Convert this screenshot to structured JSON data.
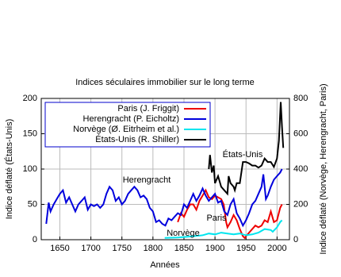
{
  "chart_data": {
    "type": "line",
    "title": "Indices séculaires immobilier sur le long terme",
    "x_label": "Années",
    "y_label": "Indice déflaté (États-Unis)",
    "y2_label": "Indice déflaté (Norvège, Herengracht, Paris)",
    "xlim": [
      1620,
      2020
    ],
    "xticks": [
      1650,
      1700,
      1750,
      1800,
      1850,
      1900,
      1950,
      2000
    ],
    "ylim": [
      0,
      200
    ],
    "yticks": [
      0,
      50,
      100,
      150,
      200
    ],
    "y2lim": [
      0,
      800
    ],
    "y2ticks": [
      0,
      200,
      400,
      600,
      800
    ],
    "grid": true,
    "legend": "upper-left",
    "annotations": [
      "Herengracht",
      "États-Unis",
      "Paris",
      "Norvège"
    ],
    "series": [
      {
        "name": "Paris (J. Friggit)",
        "color": "#ee0000",
        "axis": "y2",
        "x": [
          1840,
          1845,
          1850,
          1855,
          1860,
          1865,
          1870,
          1875,
          1880,
          1885,
          1890,
          1895,
          1900,
          1905,
          1910,
          1914,
          1918,
          1920,
          1925,
          1930,
          1935,
          1940,
          1945,
          1948,
          1950,
          1955,
          1960,
          1965,
          1970,
          1975,
          1980,
          1985,
          1990,
          1995,
          2000,
          2005,
          2008
        ],
        "values": [
          100,
          150,
          130,
          170,
          200,
          200,
          170,
          220,
          250,
          280,
          240,
          230,
          250,
          240,
          230,
          200,
          100,
          70,
          100,
          140,
          110,
          60,
          20,
          10,
          20,
          40,
          60,
          80,
          70,
          80,
          110,
          100,
          160,
          100,
          110,
          180,
          200
        ]
      },
      {
        "name": "Herengracht (P. Eicholtz)",
        "color": "#0000dd",
        "axis": "y2",
        "x": [
          1628,
          1632,
          1635,
          1640,
          1645,
          1650,
          1655,
          1660,
          1665,
          1670,
          1675,
          1680,
          1685,
          1690,
          1695,
          1700,
          1705,
          1710,
          1715,
          1720,
          1725,
          1730,
          1735,
          1740,
          1745,
          1750,
          1755,
          1760,
          1765,
          1770,
          1775,
          1780,
          1785,
          1790,
          1795,
          1800,
          1805,
          1810,
          1815,
          1820,
          1825,
          1830,
          1835,
          1840,
          1845,
          1850,
          1855,
          1860,
          1865,
          1870,
          1875,
          1880,
          1885,
          1890,
          1895,
          1900,
          1905,
          1910,
          1915,
          1920,
          1925,
          1930,
          1935,
          1940,
          1945,
          1950,
          1955,
          1960,
          1965,
          1970,
          1975,
          1978,
          1982,
          1985,
          1990,
          1995,
          2000,
          2005,
          2008
        ],
        "values": [
          90,
          210,
          160,
          200,
          230,
          260,
          280,
          210,
          240,
          200,
          160,
          200,
          220,
          240,
          170,
          200,
          190,
          200,
          180,
          200,
          260,
          300,
          280,
          220,
          240,
          200,
          220,
          260,
          280,
          300,
          280,
          240,
          250,
          230,
          180,
          160,
          100,
          110,
          90,
          80,
          120,
          110,
          130,
          150,
          140,
          200,
          180,
          220,
          260,
          220,
          250,
          290,
          250,
          220,
          240,
          260,
          210,
          220,
          160,
          140,
          200,
          230,
          150,
          120,
          80,
          110,
          150,
          200,
          220,
          260,
          300,
          370,
          230,
          250,
          300,
          340,
          360,
          380,
          400
        ]
      },
      {
        "name": "Norvège (Ø. Eitrheim et al.)",
        "color": "#00e5ee",
        "axis": "y2",
        "x": [
          1819,
          1840,
          1860,
          1880,
          1890,
          1900,
          1910,
          1920,
          1930,
          1940,
          1950,
          1960,
          1970,
          1980,
          1990,
          1993,
          2000,
          2005,
          2008
        ],
        "values": [
          10,
          12,
          18,
          25,
          35,
          30,
          40,
          35,
          30,
          35,
          25,
          30,
          40,
          60,
          55,
          45,
          70,
          100,
          110
        ]
      },
      {
        "name": "États-Unis (R. Shiller)",
        "color": "#000000",
        "axis": "y",
        "x": [
          1890,
          1892,
          1895,
          1898,
          1900,
          1905,
          1910,
          1915,
          1920,
          1922,
          1925,
          1930,
          1932,
          1935,
          1940,
          1945,
          1950,
          1955,
          1960,
          1965,
          1970,
          1975,
          1980,
          1985,
          1990,
          1995,
          2000,
          2003,
          2006,
          2008,
          2010
        ],
        "values": [
          100,
          120,
          95,
          105,
          80,
          90,
          75,
          70,
          65,
          90,
          80,
          75,
          70,
          80,
          80,
          110,
          110,
          108,
          105,
          105,
          102,
          105,
          115,
          110,
          110,
          103,
          115,
          140,
          195,
          160,
          130
        ]
      }
    ]
  }
}
